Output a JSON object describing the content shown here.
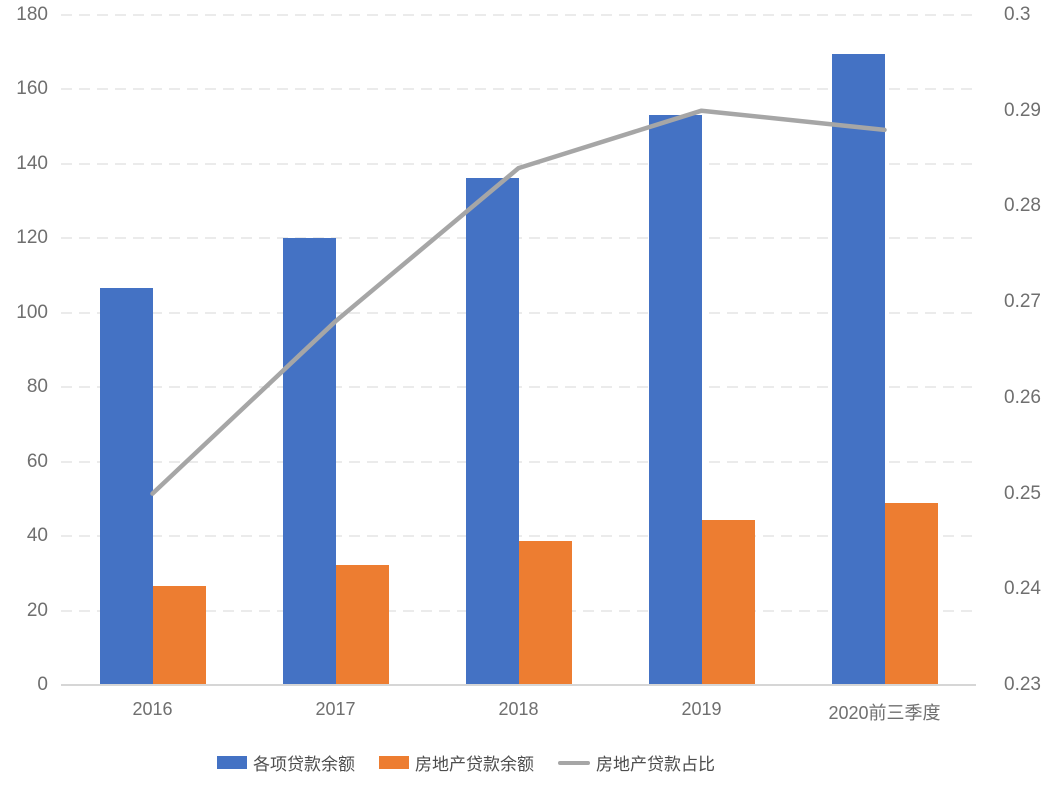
{
  "chart_data": {
    "type": "bar+line",
    "title": "",
    "categories": [
      "2016",
      "2017",
      "2018",
      "2019",
      "2020前三季度"
    ],
    "series": [
      {
        "name": "各项贷款余额",
        "type": "bar",
        "axis": "left",
        "color": "#4472C4",
        "values": [
          106.6,
          120.1,
          136.3,
          153.1,
          169.4
        ]
      },
      {
        "name": "房地产贷款余额",
        "type": "bar",
        "axis": "left",
        "color": "#ED7D31",
        "values": [
          26.7,
          32.2,
          38.7,
          44.4,
          48.8
        ]
      },
      {
        "name": "房地产贷款占比",
        "type": "line",
        "axis": "right",
        "color": "#A6A6A6",
        "values": [
          0.25,
          0.268,
          0.284,
          0.29,
          0.288
        ]
      }
    ],
    "left_axis": {
      "min": 0,
      "max": 180,
      "step": 20,
      "ticks": [
        "180",
        "160",
        "140",
        "120",
        "100",
        "80",
        "60",
        "40",
        "20",
        "0"
      ]
    },
    "right_axis": {
      "min": 0.23,
      "max": 0.3,
      "step": 0.01,
      "ticks": [
        "0.3",
        "0.29",
        "0.28",
        "0.27",
        "0.26",
        "0.25",
        "0.24",
        "0.23"
      ]
    },
    "grid": "horizontal-dashed",
    "legend_position": "bottom",
    "colors": {
      "grid": "#ebebeb",
      "axis_line": "#d6d6d6",
      "tick_text": "#6f6f6f",
      "legend_text": "#4d4d4d"
    }
  }
}
